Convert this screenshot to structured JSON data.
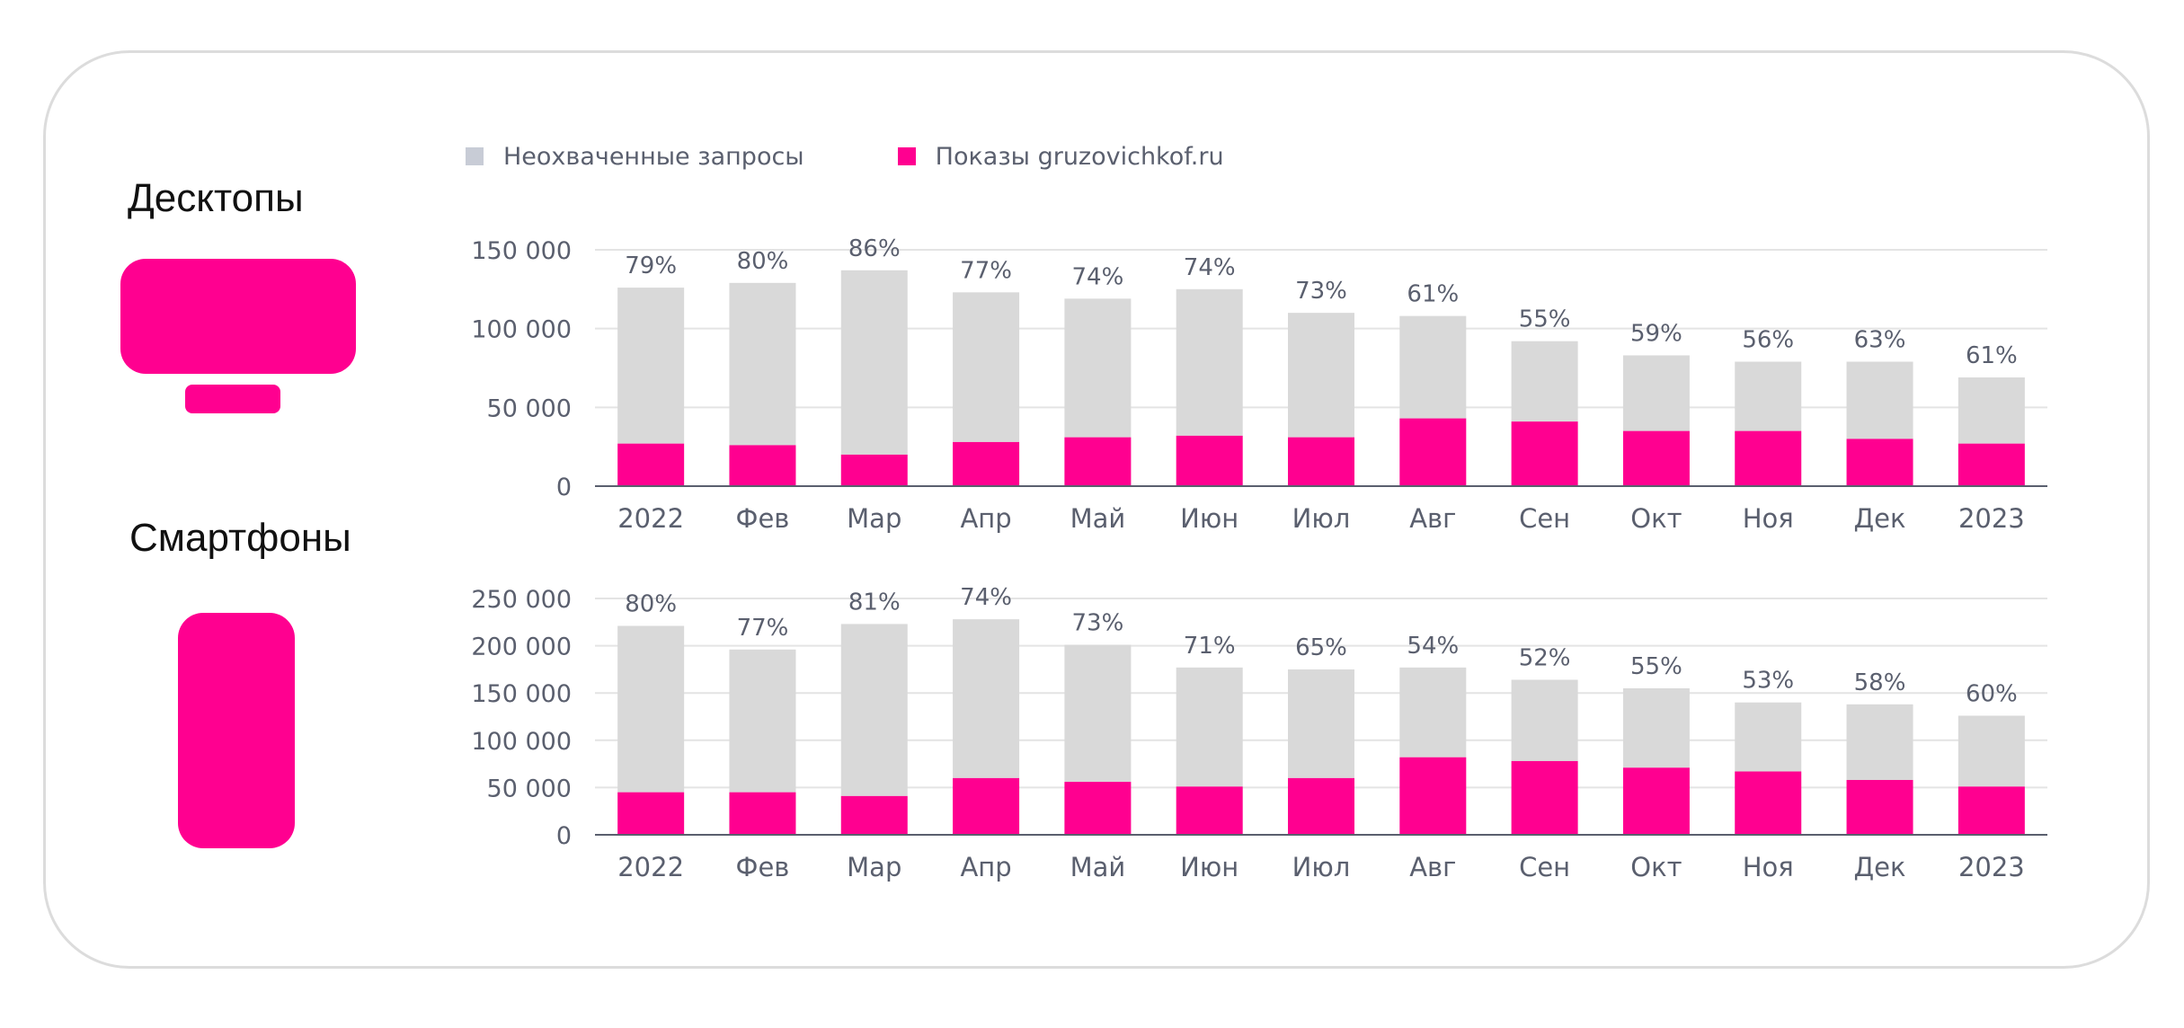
{
  "devices": {
    "desktop_label": "Десктопы",
    "smartphone_label": "Смартфоны"
  },
  "legend": [
    {
      "label": "Неохваченные запросы",
      "color": "#d9d9d9"
    },
    {
      "label": "Показы gruzovichkof.ru",
      "color": "#ff0090"
    }
  ],
  "colors": {
    "accent": "#ff0090",
    "uncovered": "#d9d9d9",
    "axis": "#5a5f6e"
  },
  "chart_data": [
    {
      "type": "bar",
      "stacked": true,
      "device": "Десктопы",
      "categories": [
        "2022",
        "Фев",
        "Мар",
        "Апр",
        "Май",
        "Июн",
        "Июл",
        "Авг",
        "Сен",
        "Окт",
        "Ноя",
        "Дек",
        "2023"
      ],
      "series": [
        {
          "name": "Показы gruzovichkof.ru",
          "values": [
            27000,
            26000,
            20000,
            28000,
            31000,
            32000,
            31000,
            43000,
            41000,
            35000,
            35000,
            30000,
            27000
          ]
        },
        {
          "name": "Неохваченные запросы",
          "values": [
            99000,
            103000,
            117000,
            95000,
            88000,
            93000,
            79000,
            65000,
            51000,
            48000,
            44000,
            49000,
            42000
          ]
        }
      ],
      "percent_labels": [
        "79%",
        "80%",
        "86%",
        "77%",
        "74%",
        "74%",
        "73%",
        "61%",
        "55%",
        "59%",
        "56%",
        "63%",
        "61%"
      ],
      "ylim": [
        0,
        150000
      ],
      "yticks": [
        0,
        50000,
        100000,
        150000
      ],
      "ytick_labels": [
        "0",
        "50 000",
        "100 000",
        "150 000"
      ],
      "grid": true
    },
    {
      "type": "bar",
      "stacked": true,
      "device": "Смартфоны",
      "categories": [
        "2022",
        "Фев",
        "Мар",
        "Апр",
        "Май",
        "Июн",
        "Июл",
        "Авг",
        "Сен",
        "Окт",
        "Ноя",
        "Дек",
        "2023"
      ],
      "series": [
        {
          "name": "Показы gruzovichkof.ru",
          "values": [
            45000,
            45000,
            41000,
            60000,
            56000,
            51000,
            60000,
            82000,
            78000,
            71000,
            67000,
            58000,
            51000
          ]
        },
        {
          "name": "Неохваченные запросы",
          "values": [
            176000,
            151000,
            182000,
            168000,
            145000,
            126000,
            115000,
            95000,
            86000,
            84000,
            73000,
            80000,
            75000
          ]
        }
      ],
      "percent_labels": [
        "80%",
        "77%",
        "81%",
        "74%",
        "73%",
        "71%",
        "65%",
        "54%",
        "52%",
        "55%",
        "53%",
        "58%",
        "60%"
      ],
      "ylim": [
        0,
        250000
      ],
      "yticks": [
        0,
        50000,
        100000,
        150000,
        200000,
        250000
      ],
      "ytick_labels": [
        "0",
        "50 000",
        "100 000",
        "150 000",
        "200 000",
        "250 000"
      ],
      "grid": true
    }
  ]
}
